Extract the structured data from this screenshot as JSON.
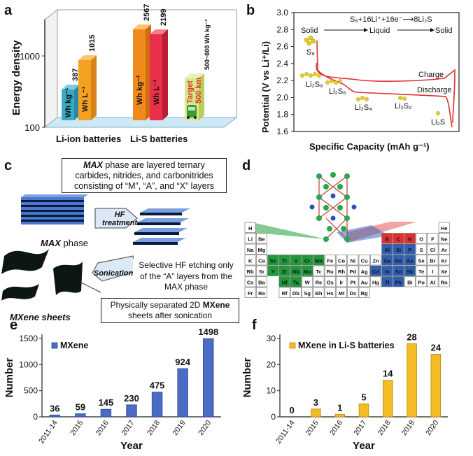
{
  "panel_labels": {
    "a": "a",
    "b": "b",
    "c": "c",
    "d": "d",
    "e": "e",
    "f": "f"
  },
  "colors": {
    "blue_bar": "#4a6cc4",
    "gold_bar": "#f2bc24",
    "red_curve": "#e03030",
    "teal": "#3aa9c4",
    "orange": "#f4a020",
    "crimson": "#e8304a",
    "green_pt": "#27a84a",
    "blue_pt": "#2f4db8",
    "cell_green": "#1f9a3a",
    "cell_blue": "#2f5fb3",
    "cell_red": "#e03030"
  },
  "panel_a": {
    "ylabel": "Energy density",
    "yticks": [
      "100",
      "1000"
    ],
    "bars": [
      {
        "value": "387",
        "unit": "Wh kg⁻¹"
      },
      {
        "value": "1015",
        "unit": "Wh L⁻¹"
      },
      {
        "value": "2567",
        "unit": "Wh kg⁻¹"
      },
      {
        "value": "2199",
        "unit": "Wh L⁻¹"
      }
    ],
    "target_label": "Target",
    "target_km": "500 km",
    "target_range": "500~600 Wh kg⁻¹",
    "group1": "Li-ion batteries",
    "group2": "Li-S batteries"
  },
  "panel_b": {
    "ylabel": "Potential (V vs Li⁺/Li)",
    "xlabel": "Specific Capacity (mAh g⁻¹)",
    "yticks": [
      "1.6",
      "1.8",
      "2.0",
      "2.2",
      "2.4",
      "2.6",
      "2.8",
      "3.0"
    ],
    "reaction": "S₈+16Li⁺+16e⁻⟶8Li₂S",
    "phase_solid1": "Solid",
    "phase_liquid": "Liquid",
    "phase_solid2": "Solid",
    "species": [
      "S₈",
      "Li₂S₈",
      "Li₂S₆",
      "Li₂S₄",
      "Li₂S₂",
      "Li₂S"
    ],
    "charge": "Charge",
    "discharge": "Discharge"
  },
  "panel_c": {
    "box_top_1": "MAX",
    "box_top_2": " phase are layered ternary carbides, nitrides, and carbonitrides consisting of “M”, “A”, and “X” layers",
    "hf": "HF treatment",
    "max_phase_1": "MAX",
    "max_phase_2": " phase",
    "sonication": "Sonication",
    "box_mid": "Selective HF etching only of the “A” layers from the MAX phase",
    "box_bot_1": "Physically separated 2D ",
    "box_bot_2": "MXene",
    "box_bot_3": " sheets after sonication",
    "mxene_sheets": "MXene sheets"
  },
  "panel_d": {
    "rows": [
      [
        "H",
        "",
        "",
        "",
        "",
        "",
        "",
        "",
        "",
        "",
        "",
        "",
        "",
        "",
        "",
        "",
        "",
        "He"
      ],
      [
        "Li",
        "Be",
        "",
        "",
        "",
        "",
        "",
        "",
        "",
        "",
        "",
        "",
        "B",
        "C",
        "N",
        "O",
        "F",
        "Ne"
      ],
      [
        "Na",
        "Mg",
        "",
        "",
        "",
        "",
        "",
        "",
        "",
        "",
        "",
        "",
        "Al",
        "Si",
        "P",
        "S",
        "Cl",
        "Ar"
      ],
      [
        "K",
        "Ca",
        "Sc",
        "Ti",
        "V",
        "Cr",
        "Mn",
        "Fe",
        "Co",
        "Ni",
        "Cu",
        "Zn",
        "Ga",
        "Ge",
        "As",
        "Se",
        "Br",
        "Kr"
      ],
      [
        "Rb",
        "Sr",
        "Y",
        "Zr",
        "Nb",
        "Mo",
        "Tc",
        "Ru",
        "Rh",
        "Pd",
        "Ag",
        "Cd",
        "In",
        "Sn",
        "Sb",
        "Te",
        "I",
        "Xe"
      ],
      [
        "Cs",
        "Ba",
        "",
        "Hf",
        "Ta",
        "W",
        "Re",
        "Os",
        "Ir",
        "Pt",
        "Au",
        "Hg",
        "Tl",
        "Pb",
        "Bi",
        "Po",
        "At",
        "Rn"
      ],
      [
        "Fr",
        "Ra",
        "",
        "Rf",
        "Db",
        "Sg",
        "Bh",
        "Hs",
        "Mt",
        "Ds",
        "Rg",
        "",
        "",
        "",
        "",
        "",
        "",
        ""
      ]
    ],
    "green": [
      "Sc",
      "Ti",
      "V",
      "Cr",
      "Mn",
      "Y",
      "Zr",
      "Nb",
      "Mo",
      "Hf",
      "Ta"
    ],
    "blue": [
      "Al",
      "Si",
      "P",
      "Ga",
      "Ge",
      "As",
      "Cd",
      "In",
      "Sn",
      "Sb",
      "Tl",
      "Pb"
    ],
    "red": [
      "B",
      "C",
      "N"
    ]
  },
  "chart_data": [
    {
      "type": "bar",
      "panel": "e",
      "categories": [
        "2011-14",
        "2015",
        "2016",
        "2017",
        "2018",
        "2019",
        "2020"
      ],
      "series": [
        {
          "name": "MXene",
          "values": [
            36,
            59,
            145,
            230,
            475,
            924,
            1498
          ]
        }
      ],
      "xlabel": "Year",
      "ylabel": "Number",
      "ylim": [
        0,
        1500
      ],
      "yticks": [
        "0",
        "500",
        "1000",
        "1500"
      ],
      "legend": "top-left"
    },
    {
      "type": "bar",
      "panel": "f",
      "categories": [
        "2011-14",
        "2015",
        "2016",
        "2017",
        "2018",
        "2019",
        "2020"
      ],
      "series": [
        {
          "name": "MXene in Li-S batteries",
          "values": [
            0,
            3,
            1,
            5,
            14,
            28,
            24
          ]
        }
      ],
      "xlabel": "Year",
      "ylabel": "Number",
      "ylim": [
        0,
        30
      ],
      "yticks": [
        "0",
        "10",
        "20",
        "30"
      ],
      "legend": "top-left"
    }
  ]
}
